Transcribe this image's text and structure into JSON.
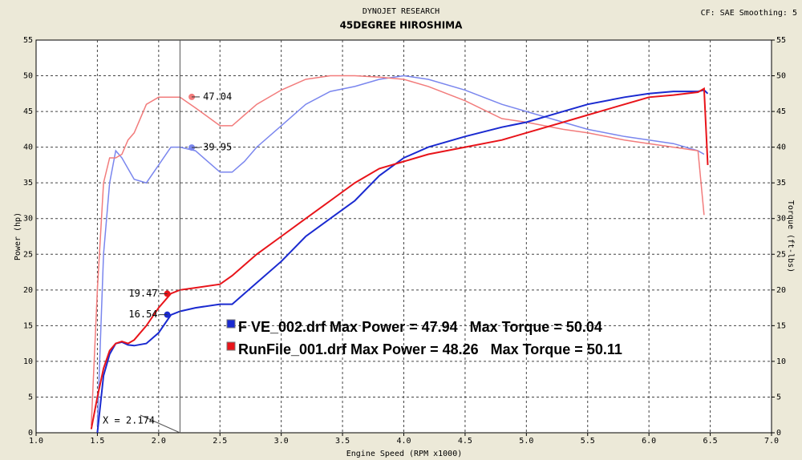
{
  "chart_data": {
    "type": "line",
    "header": "DYNOJET RESEARCH",
    "title": "45DEGREE HIROSHIMA",
    "settings_label": "CF: SAE  Smoothing: 5",
    "y_label": "Power (hp)",
    "y2_label": "Torque (ft-lbs)",
    "x_label": "Engine Speed (RPM x1000)",
    "grid": true,
    "xlim": [
      1.0,
      7.0
    ],
    "ylim": [
      0,
      55
    ],
    "y2lim": [
      0,
      55
    ],
    "xticks": [
      {
        "value": 1,
        "label": "1.0"
      },
      {
        "value": 1.5,
        "label": "1.5"
      },
      {
        "value": 2,
        "label": "2.0"
      },
      {
        "value": 2.5,
        "label": "2.5"
      },
      {
        "value": 3,
        "label": "3.0"
      },
      {
        "value": 3.5,
        "label": "3.5"
      },
      {
        "value": 4,
        "label": "4.0"
      },
      {
        "value": 4.5,
        "label": "4.5"
      },
      {
        "value": 5,
        "label": "5.0"
      },
      {
        "value": 5.5,
        "label": "5.5"
      },
      {
        "value": 6,
        "label": "6.0"
      },
      {
        "value": 6.5,
        "label": "6.5"
      },
      {
        "value": 7,
        "label": "7.0"
      }
    ],
    "yticks": [
      0,
      5,
      10,
      15,
      20,
      25,
      30,
      35,
      40,
      45,
      50,
      55
    ],
    "y2ticks": [
      0,
      5,
      10,
      15,
      20,
      25,
      30,
      35,
      40,
      45,
      50,
      55
    ],
    "x": [
      1.45,
      1.5,
      1.55,
      1.6,
      1.65,
      1.7,
      1.75,
      1.8,
      1.9,
      2.0,
      2.1,
      2.174,
      2.3,
      2.5,
      2.6,
      2.7,
      2.8,
      3.0,
      3.2,
      3.4,
      3.6,
      3.8,
      4.0,
      4.2,
      4.5,
      4.8,
      5.0,
      5.3,
      5.5,
      5.8,
      6.0,
      6.2,
      6.4,
      6.45,
      6.48
    ],
    "series": [
      {
        "color": "#7a86ee",
        "axis": "y2",
        "values": [
          null,
          1,
          25,
          35,
          39.5,
          38.5,
          37,
          35.5,
          35,
          37.5,
          40,
          40,
          39.5,
          36.5,
          36.5,
          38,
          40,
          43,
          46,
          47.8,
          48.5,
          49.5,
          50,
          49.5,
          48,
          46,
          45,
          43.5,
          42.5,
          41.5,
          41,
          40.5,
          39.5,
          39,
          null
        ]
      },
      {
        "color": "#f27c7c",
        "axis": "y2",
        "values": [
          1,
          20,
          35,
          38.5,
          38.5,
          39,
          41,
          42,
          46,
          47,
          47,
          47,
          45.5,
          43,
          43,
          44.5,
          46,
          48,
          49.5,
          50,
          50,
          49.8,
          49.5,
          48.5,
          46.5,
          44,
          43.5,
          42.5,
          42,
          41,
          40.5,
          40,
          39.5,
          30.5,
          null
        ]
      },
      {
        "color": "#1a2ad0",
        "values": [
          null,
          0,
          8,
          11,
          12.5,
          12.7,
          12.3,
          12.2,
          12.5,
          14,
          16.5,
          17,
          17.5,
          18,
          18,
          19.5,
          21,
          24,
          27.5,
          30,
          32.5,
          36,
          38.5,
          40,
          41.5,
          42.8,
          43.5,
          45,
          46,
          47,
          47.5,
          47.8,
          47.8,
          48,
          47.5
        ]
      },
      {
        "color": "#e8141a",
        "values": [
          0.5,
          5,
          9,
          11.5,
          12.5,
          12.8,
          12.5,
          13,
          15,
          17.5,
          19.5,
          20,
          20.3,
          20.8,
          22,
          23.5,
          25,
          27.5,
          30,
          32.5,
          35,
          37,
          38,
          39,
          40,
          41,
          42,
          43.5,
          44.5,
          46,
          47,
          47.3,
          47.7,
          48.2,
          37.5
        ]
      }
    ],
    "markers": [
      {
        "x": 2.27,
        "value": 47.04,
        "color": "#f27c7c"
      },
      {
        "x": 2.27,
        "value": 39.95,
        "color": "#7a86ee"
      },
      {
        "x": 2.07,
        "value": 19.47,
        "color": "#e8141a"
      },
      {
        "x": 2.07,
        "value": 16.54,
        "color": "#1a2ad0"
      }
    ],
    "cursor": {
      "x": 2.174,
      "label": "X = 2.174"
    },
    "legend": [
      {
        "label": "F VE_002.drf Max Power = 47.94   Max Torque = 50.04",
        "color": "#1a2ad0"
      },
      {
        "label": "RunFile_001.drf Max Power = 48.26   Max Torque = 50.11",
        "color": "#e8141a"
      }
    ]
  }
}
